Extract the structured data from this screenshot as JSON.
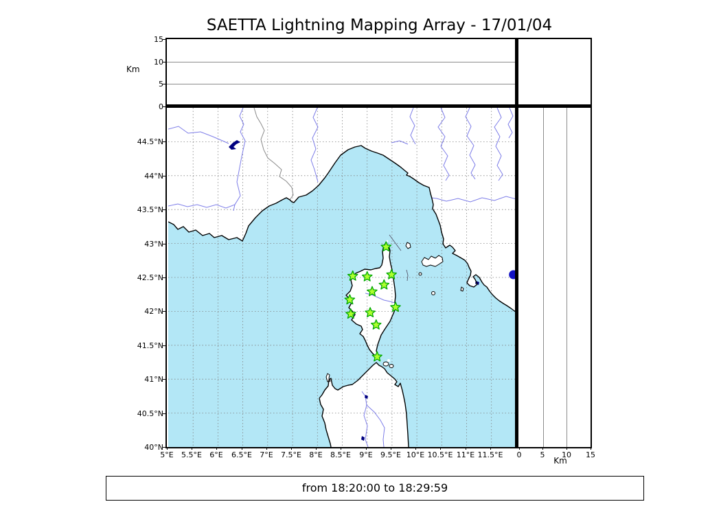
{
  "title": "SAETTA Lightning Mapping Array - 17/01/04",
  "footer": {
    "time_range": "from 18:20:00 to 18:29:59"
  },
  "top_panel": {
    "axis_label": "Km",
    "ticks": [
      "15",
      "10",
      "5",
      "0"
    ],
    "range_km": [
      0,
      15
    ]
  },
  "right_panel": {
    "axis_label": "Km",
    "ticks": [
      "0",
      "5",
      "10",
      "15"
    ],
    "range_km": [
      0,
      15
    ]
  },
  "map": {
    "lon_ticks": [
      "5°E",
      "5.5°E",
      "6°E",
      "6.5°E",
      "7°E",
      "7.5°E",
      "8°E",
      "8.5°E",
      "9°E",
      "9.5°E",
      "10°E",
      "10.5°E",
      "11°E",
      "11.5°E"
    ],
    "lat_ticks": [
      "44.5°N",
      "44°N",
      "43.5°N",
      "43°N",
      "42.5°N",
      "42°N",
      "41.5°N",
      "41°N",
      "40.5°N",
      "40°N"
    ],
    "lon_range": [
      5,
      12
    ],
    "lat_range": [
      40,
      45
    ],
    "stations": [
      {
        "lon": 9.38,
        "lat": 42.95
      },
      {
        "lon": 8.71,
        "lat": 42.52
      },
      {
        "lon": 9.0,
        "lat": 42.51
      },
      {
        "lon": 9.49,
        "lat": 42.54
      },
      {
        "lon": 9.34,
        "lat": 42.39
      },
      {
        "lon": 9.1,
        "lat": 42.29
      },
      {
        "lon": 8.65,
        "lat": 42.17
      },
      {
        "lon": 9.57,
        "lat": 42.06
      },
      {
        "lon": 9.06,
        "lat": 41.98
      },
      {
        "lon": 8.67,
        "lat": 41.96
      },
      {
        "lon": 9.18,
        "lat": 41.8
      },
      {
        "lon": 9.2,
        "lat": 41.33
      }
    ],
    "event_dot": {
      "lon": 11.94,
      "lat": 42.54
    },
    "colors": {
      "sea": "#b3e7f6",
      "land": "#ffffff",
      "coast": "#000000",
      "river": "#7d7de8",
      "country_border": "#8a8a8a",
      "grid": "#808080",
      "lake": "#000080",
      "station_fill": "#adff2f",
      "station_stroke": "#00a800",
      "event_dot_color": "#1212c4"
    }
  }
}
